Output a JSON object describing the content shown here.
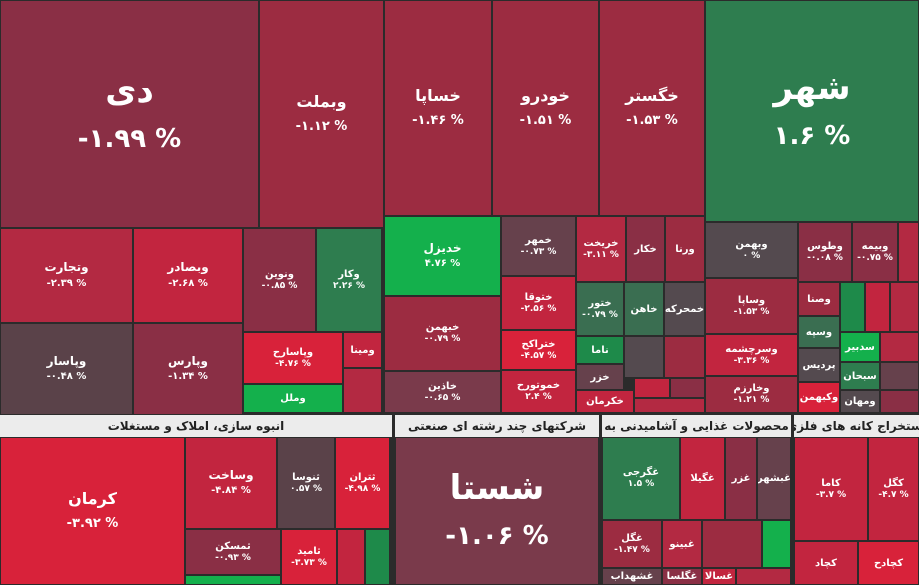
{
  "colors": {
    "background": "#2b2b2b",
    "header_bg": "#ececec",
    "positive": "#1e8a4a",
    "negative": "#c2253f",
    "neutral": "#544a4f"
  },
  "sectors": {
    "s1": "انبوه سازی، املاک و مستغلات",
    "s2": "شرکتهای چند رشته ای صنعتی",
    "s3": "محصولات غذایی و آشامیدنی به",
    "s4": "استخراج کانه های فلزی"
  },
  "tiles": {
    "di": {
      "name": "دی",
      "pct": "-۱.۹۹ %"
    },
    "vbmellat": {
      "name": "وبملت",
      "pct": "-۱.۱۲ %"
    },
    "khasapa": {
      "name": "خساپا",
      "pct": "-۱.۴۶ %"
    },
    "khodro": {
      "name": "خودرو",
      "pct": "-۱.۵۱ %"
    },
    "khegostar": {
      "name": "خگستر",
      "pct": "-۱.۵۳ %"
    },
    "shahr": {
      "name": "شهر",
      "pct": "۱.۶ %"
    },
    "vtejarat": {
      "name": "وتجارت",
      "pct": "-۲.۳۹ %"
    },
    "vbsader": {
      "name": "وبصادر",
      "pct": "-۲.۶۸ %"
    },
    "vnovin": {
      "name": "ونوین",
      "pct": "-۰.۸۵ %"
    },
    "vkar": {
      "name": "وکار",
      "pct": "۲.۲۶ %"
    },
    "vpasar": {
      "name": "وپاسار",
      "pct": "-۰.۴۸ %"
    },
    "vparsi": {
      "name": "وپارس",
      "pct": "-۱.۳۴ %"
    },
    "vpasarej": {
      "name": "وپاسارح",
      "pct": "-۴.۷۶ %"
    },
    "vmina": {
      "name": "ومینا"
    },
    "vmell": {
      "name": "وملل"
    },
    "khdizel": {
      "name": "خدیزل",
      "pct": "۴.۷۶ %"
    },
    "khbahman": {
      "name": "خبهمن",
      "pct": "-۰.۷۹ %"
    },
    "khazin": {
      "name": "خاذین",
      "pct": "-۰.۶۵ %"
    },
    "khamehr": {
      "name": "خمهر",
      "pct": "-۰.۷۳ %"
    },
    "kharikht": {
      "name": "خریخت",
      "pct": "-۳.۱۱ %"
    },
    "khakar": {
      "name": "خکار"
    },
    "varna": {
      "name": "ورنا"
    },
    "khotoogha": {
      "name": "ختوقا",
      "pct": "-۲.۵۶ %"
    },
    "khtoor": {
      "name": "ختور",
      "pct": "-۰.۷۹ %"
    },
    "khahen": {
      "name": "خاهن"
    },
    "khmohareke": {
      "name": "خمحرکه"
    },
    "khtraktor": {
      "name": "ختراکح",
      "pct": "-۴.۵۷ %"
    },
    "nama": {
      "name": "ناما"
    },
    "khamotoorh": {
      "name": "خموتورح",
      "pct": "۲.۴ %"
    },
    "khazar": {
      "name": "خزر"
    },
    "khkerman": {
      "name": "خکرمان"
    },
    "vbahman": {
      "name": "وبهمن",
      "pct": "۰ %"
    },
    "vtoos": {
      "name": "وطوس",
      "pct": "-۰.۰۸ %"
    },
    "vbime": {
      "name": "وبیمه",
      "pct": "-۰.۷۵ %"
    },
    "vsapa": {
      "name": "وساپا",
      "pct": "-۱.۵۳ %"
    },
    "vsana": {
      "name": "وصنا"
    },
    "vspeh": {
      "name": "وسپه"
    },
    "vsarcheshme": {
      "name": "وسرچشمه",
      "pct": "-۳.۳۶ %"
    },
    "pardis": {
      "name": "پردیس"
    },
    "vkharazm": {
      "name": "وخارزم",
      "pct": "-۱.۲۱ %"
    },
    "vkbahman": {
      "name": "وکبهمن"
    },
    "sadbir": {
      "name": "سدبیر"
    },
    "sbhan": {
      "name": "سبحان"
    },
    "vmahan": {
      "name": "ومهان"
    },
    "kerman": {
      "name": "کرمان",
      "pct": "-۳.۹۲ %"
    },
    "vsakht": {
      "name": "وساخت",
      "pct": "-۴.۸۴ %"
    },
    "sanos": {
      "name": "ثنوسا",
      "pct": "۰.۵۷ %"
    },
    "setran": {
      "name": "ثتران",
      "pct": "-۴.۹۸ %"
    },
    "samskan": {
      "name": "ثمسکن",
      "pct": "-۰.۹۳ %"
    },
    "samid": {
      "name": "ثامید",
      "pct": "-۳.۷۳ %"
    },
    "shasta": {
      "name": "شستا",
      "pct": "-۱.۰۶ %"
    },
    "ghgorji": {
      "name": "غگرجی",
      "pct": "۱.۵ %"
    },
    "ghgila": {
      "name": "غگیلا"
    },
    "ghazar": {
      "name": "غزر"
    },
    "ghbeshahr": {
      "name": "غبشهر"
    },
    "ghgol": {
      "name": "غگل",
      "pct": "-۱.۴۷ %"
    },
    "ghbino": {
      "name": "غبینو"
    },
    "ghshahd": {
      "name": "غشهداب"
    },
    "ghglsa": {
      "name": "غگلسا"
    },
    "ghsala": {
      "name": "غسالا"
    },
    "kama": {
      "name": "کاما",
      "pct": "-۳.۷ %"
    },
    "kegol": {
      "name": "کگل",
      "pct": "-۴.۷ %"
    },
    "kechad": {
      "name": "کچاد"
    },
    "kechadam": {
      "name": "کچادح"
    }
  }
}
